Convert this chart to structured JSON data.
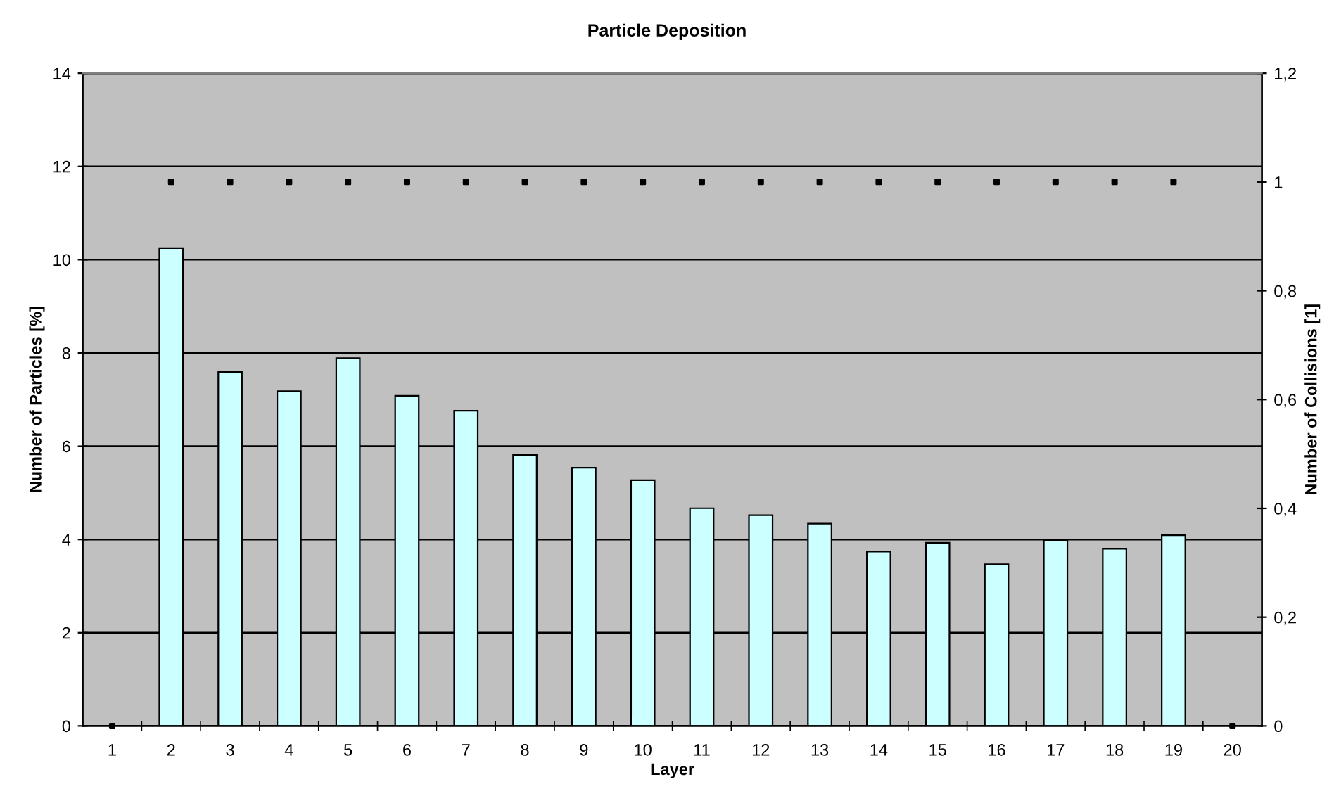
{
  "chart_data": {
    "type": "bar",
    "title": "Particle Deposition",
    "xlabel": "Layer",
    "ylabel": "Number of Particles [%]",
    "y2label": "Number of Collisions [1]",
    "categories": [
      "1",
      "2",
      "3",
      "4",
      "5",
      "6",
      "7",
      "8",
      "9",
      "10",
      "11",
      "12",
      "13",
      "14",
      "15",
      "16",
      "17",
      "18",
      "19",
      "20"
    ],
    "series": [
      {
        "color": "#ccffff",
        "values": [
          null,
          10.25,
          7.59,
          7.18,
          7.89,
          7.08,
          6.76,
          5.81,
          5.54,
          5.27,
          4.67,
          4.52,
          4.34,
          3.74,
          3.93,
          3.47,
          3.98,
          3.8,
          4.09,
          null
        ]
      },
      {
        "type": "scatter",
        "axis": "y2",
        "color": "#000000",
        "marker": "square",
        "values": [
          0,
          1,
          1,
          1,
          1,
          1,
          1,
          1,
          1,
          1,
          1,
          1,
          1,
          1,
          1,
          1,
          1,
          1,
          1,
          0
        ]
      }
    ],
    "ylim": [
      0,
      14
    ],
    "yticks": [
      0,
      2,
      4,
      6,
      8,
      10,
      12,
      14
    ],
    "y2lim": [
      0,
      1.2
    ],
    "y2ticks": [
      0,
      {
        "value": 0.2,
        "label": "0,2"
      },
      {
        "value": 0.4,
        "label": "0,4"
      },
      {
        "value": 0.6,
        "label": "0,6"
      },
      {
        "value": 0.8,
        "label": "0,8"
      },
      1,
      {
        "value": 1.2,
        "label": "1,2"
      }
    ],
    "grid": "y"
  }
}
